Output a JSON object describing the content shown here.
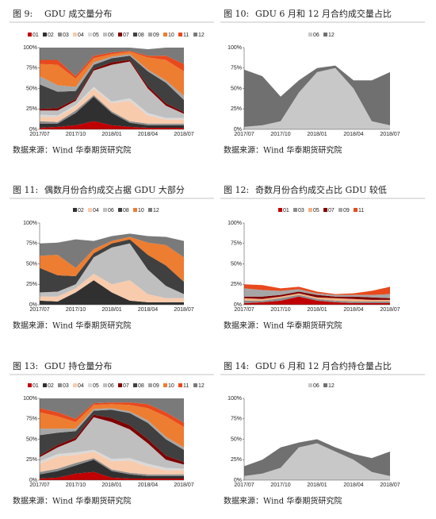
{
  "chart_data": [
    {
      "type": "area",
      "figure_label": "图 9:",
      "title": "GDU 成交量分布",
      "source": "数据来源：Wind 华泰期货研究院",
      "categories": [
        "2017/07",
        null,
        "2017/10",
        null,
        "2018/01",
        null,
        "2018/04",
        null,
        "2018/07"
      ],
      "ylim": [
        0,
        100
      ],
      "yticks": [
        {
          "value": 0,
          "label": "0%"
        },
        {
          "value": 25,
          "label": "25%"
        },
        {
          "value": 50,
          "label": "50%"
        },
        {
          "value": 75,
          "label": "75%"
        },
        {
          "value": 100,
          "label": "100%"
        }
      ],
      "series": [
        {
          "name": "01",
          "color": "#c00000",
          "values": [
            2,
            3,
            5,
            10,
            5,
            3,
            2,
            2,
            2
          ]
        },
        {
          "name": "02",
          "color": "#303030",
          "values": [
            5,
            4,
            15,
            30,
            15,
            5,
            3,
            3,
            3
          ]
        },
        {
          "name": "03",
          "color": "#8c8c8c",
          "values": [
            3,
            2,
            3,
            2,
            2,
            2,
            2,
            2,
            2
          ]
        },
        {
          "name": "04",
          "color": "#f8cbad",
          "values": [
            5,
            6,
            5,
            8,
            10,
            25,
            10,
            5,
            5
          ]
        },
        {
          "name": "05",
          "color": "#d9d9d9",
          "values": [
            3,
            2,
            2,
            2,
            2,
            3,
            3,
            2,
            2
          ]
        },
        {
          "name": "06",
          "color": "#bfbfbf",
          "values": [
            5,
            6,
            5,
            20,
            45,
            45,
            30,
            15,
            5
          ]
        },
        {
          "name": "07",
          "color": "#7f0000",
          "values": [
            2,
            3,
            2,
            2,
            3,
            2,
            3,
            3,
            2
          ]
        },
        {
          "name": "08",
          "color": "#404040",
          "values": [
            30,
            20,
            10,
            5,
            5,
            5,
            18,
            25,
            15
          ]
        },
        {
          "name": "09",
          "color": "#a6a6a6",
          "values": [
            10,
            8,
            5,
            3,
            2,
            2,
            2,
            3,
            5
          ]
        },
        {
          "name": "10",
          "color": "#ed7d31",
          "values": [
            15,
            25,
            10,
            5,
            3,
            3,
            15,
            25,
            30
          ]
        },
        {
          "name": "11",
          "color": "#e8491d",
          "values": [
            5,
            6,
            3,
            3,
            2,
            1,
            2,
            5,
            9
          ]
        },
        {
          "name": "12",
          "color": "#7a7a7a",
          "values": [
            15,
            15,
            35,
            10,
            6,
            4,
            8,
            10,
            20
          ]
        }
      ]
    },
    {
      "type": "area",
      "figure_label": "图 10:",
      "title": "GDU 6 月和 12 月合约成交量占比",
      "source": "数据来源：Wind 华泰期货研究院",
      "categories": [
        "2017/07",
        null,
        "2017/10",
        null,
        "2018/01",
        null,
        "2018/04",
        null,
        "2018/07"
      ],
      "ylim": [
        0,
        100
      ],
      "yticks": [
        {
          "value": 0,
          "label": "0%"
        },
        {
          "value": 25,
          "label": "25%"
        },
        {
          "value": 50,
          "label": "50%"
        },
        {
          "value": 75,
          "label": "75%"
        },
        {
          "value": 100,
          "label": "100%"
        }
      ],
      "series": [
        {
          "name": "06",
          "color": "#c8c8c8",
          "values": [
            3,
            5,
            10,
            45,
            70,
            75,
            50,
            10,
            5
          ]
        },
        {
          "name": "12",
          "color": "#707070",
          "values": [
            70,
            60,
            30,
            15,
            5,
            3,
            10,
            50,
            65
          ]
        }
      ]
    },
    {
      "type": "area",
      "figure_label": "图 11:",
      "title": "偶数月份合约成交占据 GDU 大部分",
      "source": "数据来源：Wind 华泰期货研究院",
      "categories": [
        "2017/07",
        null,
        "2017/10",
        null,
        "2018/01",
        null,
        "2018/04",
        null,
        "2018/07"
      ],
      "ylim": [
        0,
        100
      ],
      "yticks": [
        {
          "value": 0,
          "label": "0%"
        },
        {
          "value": 25,
          "label": "25%"
        },
        {
          "value": 50,
          "label": "50%"
        },
        {
          "value": 75,
          "label": "75%"
        },
        {
          "value": 100,
          "label": "100%"
        }
      ],
      "series": [
        {
          "name": "02",
          "color": "#303030",
          "values": [
            5,
            4,
            15,
            30,
            15,
            5,
            3,
            3,
            3
          ]
        },
        {
          "name": "04",
          "color": "#f8cbad",
          "values": [
            5,
            6,
            5,
            8,
            10,
            25,
            10,
            5,
            5
          ]
        },
        {
          "name": "06",
          "color": "#bfbfbf",
          "values": [
            5,
            6,
            5,
            20,
            45,
            45,
            30,
            15,
            5
          ]
        },
        {
          "name": "08",
          "color": "#404040",
          "values": [
            30,
            20,
            10,
            5,
            5,
            5,
            18,
            25,
            15
          ]
        },
        {
          "name": "10",
          "color": "#ed7d31",
          "values": [
            15,
            25,
            10,
            5,
            3,
            3,
            15,
            25,
            30
          ]
        },
        {
          "name": "12",
          "color": "#7a7a7a",
          "values": [
            15,
            15,
            35,
            10,
            6,
            4,
            8,
            10,
            20
          ]
        }
      ]
    },
    {
      "type": "area",
      "figure_label": "图 12:",
      "title": "奇数月份合约成交占比 GDU 较低",
      "source": "数据来源：Wind 华泰期货研究院",
      "categories": [
        "2017/07",
        null,
        "2017/10",
        null,
        "2018/01",
        null,
        "2018/04",
        null,
        "2018/07"
      ],
      "ylim": [
        0,
        100
      ],
      "yticks": [
        {
          "value": 0,
          "label": "0%"
        },
        {
          "value": 25,
          "label": "25%"
        },
        {
          "value": 50,
          "label": "50%"
        },
        {
          "value": 75,
          "label": "75%"
        },
        {
          "value": 100,
          "label": "100%"
        }
      ],
      "series": [
        {
          "name": "01",
          "color": "#c00000",
          "values": [
            2,
            3,
            5,
            10,
            5,
            3,
            2,
            2,
            2
          ]
        },
        {
          "name": "03",
          "color": "#8c8c8c",
          "values": [
            3,
            2,
            3,
            2,
            2,
            2,
            2,
            2,
            2
          ]
        },
        {
          "name": "05",
          "color": "#f4b183",
          "values": [
            3,
            2,
            2,
            2,
            2,
            3,
            3,
            2,
            2
          ]
        },
        {
          "name": "07",
          "color": "#7f0000",
          "values": [
            2,
            3,
            2,
            2,
            3,
            2,
            3,
            3,
            2
          ]
        },
        {
          "name": "09",
          "color": "#a6a6a6",
          "values": [
            10,
            8,
            5,
            3,
            2,
            2,
            2,
            3,
            5
          ]
        },
        {
          "name": "11",
          "color": "#e8491d",
          "values": [
            5,
            6,
            3,
            3,
            2,
            1,
            2,
            5,
            9
          ]
        }
      ]
    },
    {
      "type": "area",
      "figure_label": "图 13:",
      "title": "GDU 持仓量分布",
      "source": "数据来源：Wind 华泰期货研究院",
      "categories": [
        "2017/07",
        null,
        "2017/10",
        null,
        "2018/01",
        null,
        "2018/04",
        null,
        "2018/07"
      ],
      "ylim": [
        0,
        100
      ],
      "yticks": [
        {
          "value": 0,
          "label": "0%"
        },
        {
          "value": 25,
          "label": "25%"
        },
        {
          "value": 50,
          "label": "50%"
        },
        {
          "value": 75,
          "label": "75%"
        },
        {
          "value": 100,
          "label": "100%"
        }
      ],
      "series": [
        {
          "name": "01",
          "color": "#c00000",
          "values": [
            2,
            3,
            8,
            10,
            3,
            2,
            2,
            2,
            2
          ]
        },
        {
          "name": "02",
          "color": "#303030",
          "values": [
            5,
            8,
            10,
            15,
            8,
            5,
            3,
            3,
            3
          ]
        },
        {
          "name": "03",
          "color": "#8c8c8c",
          "values": [
            3,
            3,
            3,
            2,
            2,
            2,
            2,
            2,
            2
          ]
        },
        {
          "name": "04",
          "color": "#f8cbad",
          "values": [
            10,
            15,
            10,
            8,
            10,
            15,
            10,
            5,
            5
          ]
        },
        {
          "name": "05",
          "color": "#d9d9d9",
          "values": [
            3,
            3,
            3,
            2,
            3,
            3,
            3,
            3,
            2
          ]
        },
        {
          "name": "06",
          "color": "#bfbfbf",
          "values": [
            5,
            8,
            15,
            40,
            45,
            35,
            25,
            10,
            5
          ]
        },
        {
          "name": "07",
          "color": "#7f0000",
          "values": [
            2,
            3,
            3,
            3,
            5,
            5,
            5,
            5,
            3
          ]
        },
        {
          "name": "08",
          "color": "#404040",
          "values": [
            25,
            15,
            8,
            5,
            10,
            15,
            20,
            20,
            15
          ]
        },
        {
          "name": "09",
          "color": "#a6a6a6",
          "values": [
            8,
            5,
            3,
            2,
            2,
            2,
            3,
            3,
            3
          ]
        },
        {
          "name": "10",
          "color": "#ed7d31",
          "values": [
            20,
            15,
            8,
            5,
            5,
            8,
            15,
            25,
            25
          ]
        },
        {
          "name": "11",
          "color": "#e8491d",
          "values": [
            5,
            5,
            4,
            2,
            2,
            3,
            5,
            5,
            5
          ]
        },
        {
          "name": "12",
          "color": "#7a7a7a",
          "values": [
            12,
            17,
            25,
            6,
            5,
            5,
            7,
            17,
            30
          ]
        }
      ]
    },
    {
      "type": "area",
      "figure_label": "图 14:",
      "title": "GDU 6 月和 12 月合约持仓量占比",
      "source": "数据来源：Wind 华泰期货研究院",
      "categories": [
        "2017/07",
        null,
        "2017/10",
        null,
        "2018/01",
        null,
        "2018/04",
        null,
        "2018/07"
      ],
      "ylim": [
        0,
        100
      ],
      "yticks": [
        {
          "value": 0,
          "label": "0%"
        },
        {
          "value": 25,
          "label": "25%"
        },
        {
          "value": 50,
          "label": "50%"
        },
        {
          "value": 75,
          "label": "75%"
        },
        {
          "value": 100,
          "label": "100%"
        }
      ],
      "series": [
        {
          "name": "06",
          "color": "#c8c8c8",
          "values": [
            5,
            8,
            15,
            40,
            45,
            35,
            25,
            10,
            5
          ]
        },
        {
          "name": "12",
          "color": "#707070",
          "values": [
            12,
            17,
            25,
            6,
            5,
            5,
            7,
            17,
            30
          ]
        }
      ]
    }
  ]
}
